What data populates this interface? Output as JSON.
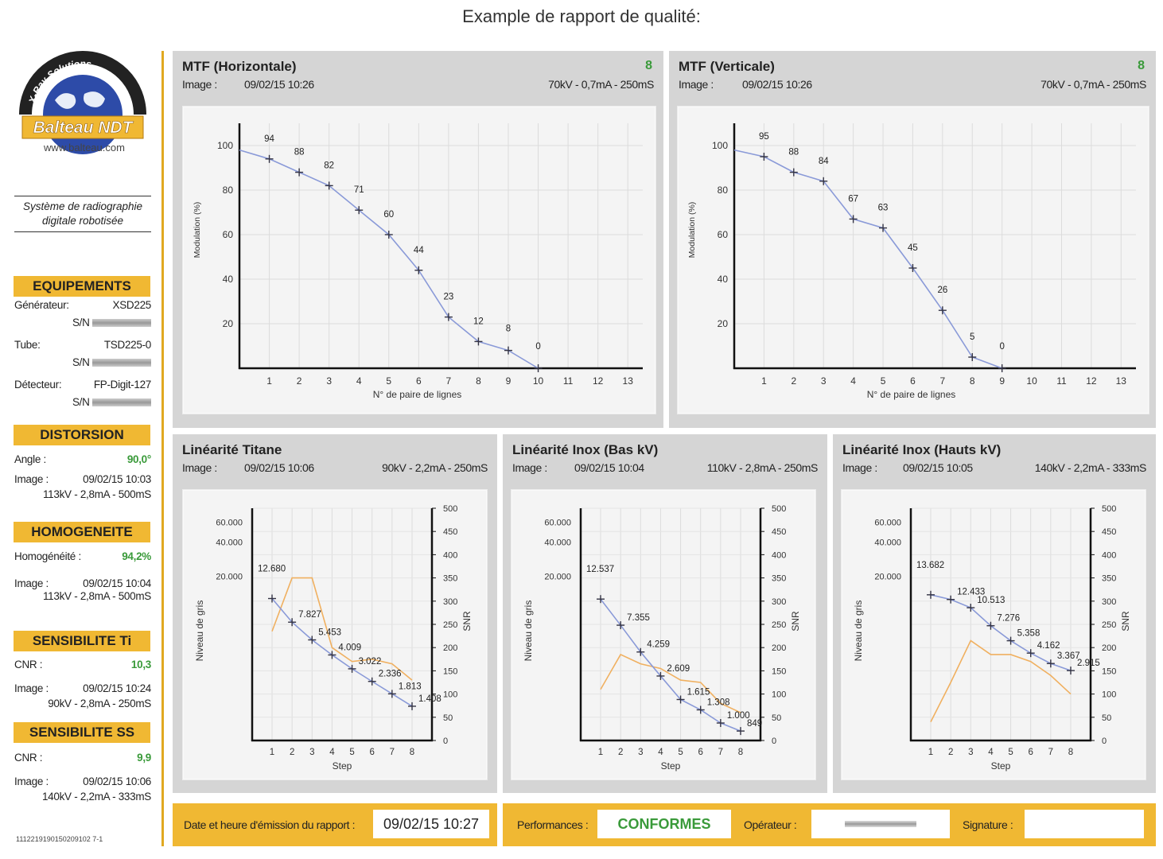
{
  "report_title": "Example de rapport de qualité:",
  "logo": {
    "company": "Balteau NDT",
    "tagline": "X-Ray Solutions",
    "url": "www.balteau.com"
  },
  "system_description": "Système de radiographie digitale robotisée",
  "left": {
    "equipements": {
      "title": "EQUIPEMENTS",
      "generateur_label": "Générateur:",
      "generateur_value": "XSD225",
      "tube_label": "Tube:",
      "tube_value": "TSD225-0",
      "detecteur_label": "Détecteur:",
      "detecteur_value": "FP-Digit-127",
      "sn_label": "S/N"
    },
    "distorsion": {
      "title": "DISTORSION",
      "angle_label": "Angle :",
      "angle_value": "90,0°",
      "image_label": "Image :",
      "image_date": "09/02/15 10:03",
      "image_params": "113kV - 2,8mA - 500mS"
    },
    "homogeneite": {
      "title": "HOMOGENEITE",
      "label": "Homogénéité :",
      "value": "94,2%",
      "image_label": "Image :",
      "image_date": "09/02/15 10:04",
      "image_params": "113kV - 2,8mA - 500mS"
    },
    "sens_ti": {
      "title": "SENSIBILITE Ti",
      "cnr_label": "CNR :",
      "cnr_value": "10,3",
      "image_label": "Image :",
      "image_date": "09/02/15 10:24",
      "image_params": "90kV - 2,8mA - 250mS"
    },
    "sens_ss": {
      "title": "SENSIBILITE SS",
      "cnr_label": "CNR :",
      "cnr_value": "9,9",
      "image_label": "Image :",
      "image_date": "09/02/15 10:06",
      "image_params": "140kV - 2,2mA - 333mS"
    },
    "report_code": "1112219190150209102 7-1"
  },
  "panels": {
    "mtf_h": {
      "title": "MTF (Horizontale)",
      "score": "8",
      "image_label": "Image :",
      "date": "09/02/15 10:26",
      "params": "70kV - 0,7mA - 250mS"
    },
    "mtf_v": {
      "title": "MTF (Verticale)",
      "score": "8",
      "image_label": "Image :",
      "date": "09/02/15 10:26",
      "params": "70kV - 0,7mA - 250mS"
    },
    "lin_ti": {
      "title": "Linéarité Titane",
      "image_label": "Image :",
      "date": "09/02/15 10:06",
      "params": "90kV - 2,2mA - 250mS"
    },
    "lin_bas": {
      "title": "Linéarité Inox (Bas kV)",
      "image_label": "Image :",
      "date": "09/02/15 10:04",
      "params": "110kV - 2,8mA - 250mS"
    },
    "lin_haut": {
      "title": "Linéarité Inox (Hauts kV)",
      "image_label": "Image :",
      "date": "09/02/15 10:05",
      "params": "140kV - 2,2mA - 333mS"
    }
  },
  "footer": {
    "date_label": "Date et heure d'émission du rapport :",
    "date_value": "09/02/15 10:27",
    "perf_label": "Performances :",
    "perf_value": "CONFORMES",
    "operator_label": "Opérateur :",
    "signature_label": "Signature :"
  },
  "colors": {
    "accent": "#f0b833",
    "pass": "#3a9a3a",
    "mtf_line": "#8a9ad8",
    "snr_line": "#f0b060"
  },
  "chart_data": [
    {
      "id": "mtf_h",
      "type": "line",
      "xlabel": "N° de paire de lignes",
      "ylabel": "Modulation (%)",
      "xlim": [
        0,
        13.5
      ],
      "ylim": [
        0,
        110
      ],
      "xticks": [
        1,
        2,
        3,
        4,
        5,
        6,
        7,
        8,
        9,
        10,
        11,
        12,
        13
      ],
      "yticks": [
        20,
        40,
        60,
        80,
        100
      ],
      "x": [
        1,
        2,
        3,
        4,
        5,
        6,
        7,
        8,
        9,
        10
      ],
      "y": [
        94,
        88,
        82,
        71,
        60,
        44,
        23,
        12,
        8,
        0
      ],
      "start_y": 98
    },
    {
      "id": "mtf_v",
      "type": "line",
      "xlabel": "N° de paire de lignes",
      "ylabel": "Modulation (%)",
      "xlim": [
        0,
        13.5
      ],
      "ylim": [
        0,
        110
      ],
      "xticks": [
        1,
        2,
        3,
        4,
        5,
        6,
        7,
        8,
        9,
        10,
        11,
        12,
        13
      ],
      "yticks": [
        20,
        40,
        60,
        80,
        100
      ],
      "x": [
        1,
        2,
        3,
        4,
        5,
        6,
        7,
        8,
        9
      ],
      "y": [
        95,
        88,
        84,
        67,
        63,
        45,
        26,
        5,
        0
      ],
      "start_y": 98
    },
    {
      "id": "lin_ti",
      "type": "line",
      "xlabel": "Step",
      "ylabel": "Niveau de gris",
      "y2label": "SNR",
      "categories": [
        1,
        2,
        3,
        4,
        5,
        6,
        7,
        8
      ],
      "yticks": [
        "20.000",
        "40.000",
        "60.000"
      ],
      "y2ticks": [
        0,
        50,
        100,
        150,
        200,
        250,
        300,
        350,
        400,
        450,
        500
      ],
      "series": [
        {
          "values": [
            12680,
            7827,
            5453,
            4009,
            3022,
            2336,
            1813,
            1408
          ]
        }
      ],
      "snr": [
        235,
        350,
        350,
        200,
        170,
        175,
        165,
        130
      ]
    },
    {
      "id": "lin_bas",
      "type": "line",
      "xlabel": "Step",
      "ylabel": "Niveau de gris",
      "y2label": "SNR",
      "categories": [
        1,
        2,
        3,
        4,
        5,
        6,
        7,
        8
      ],
      "yticks": [
        "20.000",
        "40.000",
        "60.000"
      ],
      "y2ticks": [
        0,
        50,
        100,
        150,
        200,
        250,
        300,
        350,
        400,
        450,
        500
      ],
      "series": [
        {
          "values": [
            12537,
            7355,
            4259,
            2609,
            1615,
            1308,
            1000,
            849
          ]
        }
      ],
      "snr": [
        110,
        185,
        165,
        155,
        130,
        125,
        80,
        60
      ]
    },
    {
      "id": "lin_haut",
      "type": "line",
      "xlabel": "Step",
      "ylabel": "Niveau de gris",
      "y2label": "SNR",
      "categories": [
        1,
        2,
        3,
        4,
        5,
        6,
        7,
        8
      ],
      "yticks": [
        "20.000",
        "40.000",
        "60.000"
      ],
      "y2ticks": [
        0,
        50,
        100,
        150,
        200,
        250,
        300,
        350,
        400,
        450,
        500
      ],
      "series": [
        {
          "values": [
            13682,
            12433,
            10513,
            7276,
            5358,
            4162,
            3367,
            2915
          ]
        }
      ],
      "snr": [
        40,
        125,
        215,
        185,
        185,
        170,
        140,
        100
      ]
    }
  ]
}
